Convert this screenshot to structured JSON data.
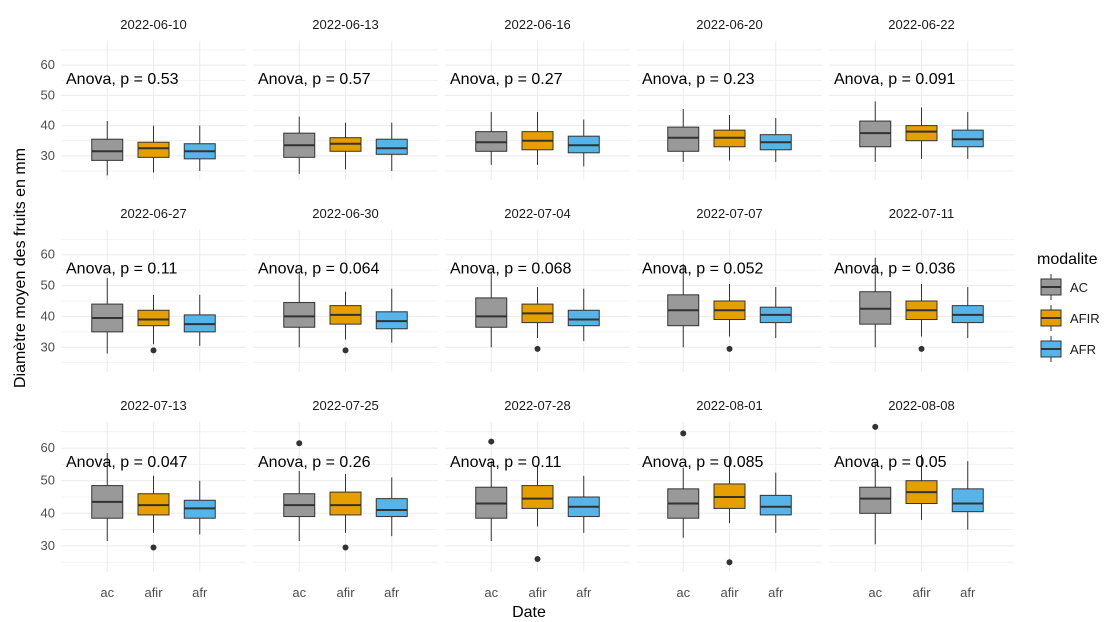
{
  "colors": {
    "ac": "#999999",
    "afir": "#E69F00",
    "afr": "#56B4E9",
    "grid": "#ebebeb",
    "box_line": "#333333"
  },
  "chart_data": {
    "type": "boxplot",
    "xlabel": "Date",
    "ylabel": "Diamètre moyen des fruits en mm",
    "categories": [
      "ac",
      "afir",
      "afr"
    ],
    "y_ticks": [
      30,
      40,
      50,
      60
    ],
    "ylim": [
      22,
      68
    ],
    "grid": true,
    "legend": {
      "title": "modalite",
      "position": "right",
      "entries": [
        "AC",
        "AFIR",
        "AFR"
      ]
    },
    "facets": [
      {
        "title": "2022-06-10",
        "anova": "Anova, p = 0.53",
        "boxes": [
          {
            "min": 23.5,
            "q1": 28.5,
            "median": 31.5,
            "q3": 35.5,
            "max": 41.5,
            "outliers": []
          },
          {
            "min": 24.5,
            "q1": 29.5,
            "median": 32.5,
            "q3": 34.5,
            "max": 40.0,
            "outliers": []
          },
          {
            "min": 25.0,
            "q1": 29.0,
            "median": 31.5,
            "q3": 34.0,
            "max": 40.0,
            "outliers": []
          }
        ]
      },
      {
        "title": "2022-06-13",
        "anova": "Anova, p = 0.57",
        "boxes": [
          {
            "min": 24.0,
            "q1": 29.5,
            "median": 33.5,
            "q3": 37.5,
            "max": 43.0,
            "outliers": []
          },
          {
            "min": 25.5,
            "q1": 31.5,
            "median": 34.0,
            "q3": 36.0,
            "max": 41.0,
            "outliers": []
          },
          {
            "min": 25.0,
            "q1": 30.5,
            "median": 32.5,
            "q3": 35.5,
            "max": 41.0,
            "outliers": []
          }
        ]
      },
      {
        "title": "2022-06-16",
        "anova": "Anova, p = 0.27",
        "boxes": [
          {
            "min": 27.0,
            "q1": 31.5,
            "median": 34.5,
            "q3": 38.0,
            "max": 44.5,
            "outliers": []
          },
          {
            "min": 27.0,
            "q1": 32.0,
            "median": 35.0,
            "q3": 38.0,
            "max": 44.5,
            "outliers": []
          },
          {
            "min": 26.5,
            "q1": 31.0,
            "median": 33.5,
            "q3": 36.5,
            "max": 42.0,
            "outliers": []
          }
        ]
      },
      {
        "title": "2022-06-20",
        "anova": "Anova, p = 0.23",
        "boxes": [
          {
            "min": 28.0,
            "q1": 31.5,
            "median": 36.0,
            "q3": 39.5,
            "max": 45.5,
            "outliers": []
          },
          {
            "min": 28.5,
            "q1": 33.0,
            "median": 36.0,
            "q3": 38.5,
            "max": 43.5,
            "outliers": []
          },
          {
            "min": 28.0,
            "q1": 32.0,
            "median": 34.5,
            "q3": 37.0,
            "max": 42.5,
            "outliers": []
          }
        ]
      },
      {
        "title": "2022-06-22",
        "anova": "Anova, p = 0.091",
        "boxes": [
          {
            "min": 28.0,
            "q1": 33.0,
            "median": 37.5,
            "q3": 41.5,
            "max": 48.0,
            "outliers": []
          },
          {
            "min": 29.0,
            "q1": 35.0,
            "median": 38.0,
            "q3": 40.0,
            "max": 46.0,
            "outliers": []
          },
          {
            "min": 29.0,
            "q1": 33.0,
            "median": 35.5,
            "q3": 38.5,
            "max": 44.5,
            "outliers": []
          }
        ]
      },
      {
        "title": "2022-06-27",
        "anova": "Anova, p = 0.11",
        "boxes": [
          {
            "min": 28.0,
            "q1": 35.0,
            "median": 39.5,
            "q3": 44.0,
            "max": 52.5,
            "outliers": []
          },
          {
            "min": 31.0,
            "q1": 37.0,
            "median": 39.0,
            "q3": 42.0,
            "max": 47.0,
            "outliers": [
              29.0
            ]
          },
          {
            "min": 30.5,
            "q1": 35.0,
            "median": 37.5,
            "q3": 40.5,
            "max": 47.0,
            "outliers": []
          }
        ]
      },
      {
        "title": "2022-06-30",
        "anova": "Anova, p = 0.064",
        "boxes": [
          {
            "min": 30.0,
            "q1": 36.5,
            "median": 40.0,
            "q3": 44.5,
            "max": 54.5,
            "outliers": []
          },
          {
            "min": 32.5,
            "q1": 37.5,
            "median": 40.5,
            "q3": 43.5,
            "max": 48.0,
            "outliers": [
              29.0
            ]
          },
          {
            "min": 31.5,
            "q1": 36.0,
            "median": 38.5,
            "q3": 41.5,
            "max": 49.0,
            "outliers": []
          }
        ]
      },
      {
        "title": "2022-07-04",
        "anova": "Anova, p = 0.068",
        "boxes": [
          {
            "min": 30.0,
            "q1": 36.5,
            "median": 40.0,
            "q3": 46.0,
            "max": 54.5,
            "outliers": []
          },
          {
            "min": 33.0,
            "q1": 38.0,
            "median": 41.0,
            "q3": 44.0,
            "max": 49.5,
            "outliers": [
              29.5
            ]
          },
          {
            "min": 32.0,
            "q1": 37.0,
            "median": 39.0,
            "q3": 42.0,
            "max": 49.0,
            "outliers": []
          }
        ]
      },
      {
        "title": "2022-07-07",
        "anova": "Anova, p = 0.052",
        "boxes": [
          {
            "min": 30.0,
            "q1": 37.0,
            "median": 42.0,
            "q3": 47.0,
            "max": 57.0,
            "outliers": []
          },
          {
            "min": 33.5,
            "q1": 39.0,
            "median": 42.0,
            "q3": 45.0,
            "max": 50.5,
            "outliers": [
              29.5
            ]
          },
          {
            "min": 33.0,
            "q1": 38.0,
            "median": 40.5,
            "q3": 43.0,
            "max": 49.5,
            "outliers": []
          }
        ]
      },
      {
        "title": "2022-07-11",
        "anova": "Anova, p = 0.036",
        "boxes": [
          {
            "min": 30.0,
            "q1": 37.5,
            "median": 42.5,
            "q3": 48.0,
            "max": 59.0,
            "outliers": []
          },
          {
            "min": 33.5,
            "q1": 39.0,
            "median": 42.0,
            "q3": 45.0,
            "max": 50.5,
            "outliers": [
              29.5
            ]
          },
          {
            "min": 33.0,
            "q1": 38.0,
            "median": 40.5,
            "q3": 43.5,
            "max": 49.5,
            "outliers": []
          }
        ]
      },
      {
        "title": "2022-07-13",
        "anova": "Anova, p = 0.047",
        "boxes": [
          {
            "min": 31.5,
            "q1": 38.5,
            "median": 43.5,
            "q3": 48.5,
            "max": 58.5,
            "outliers": []
          },
          {
            "min": 34.0,
            "q1": 39.5,
            "median": 42.5,
            "q3": 46.0,
            "max": 51.5,
            "outliers": [
              29.5
            ]
          },
          {
            "min": 33.5,
            "q1": 38.5,
            "median": 41.5,
            "q3": 44.0,
            "max": 50.0,
            "outliers": []
          }
        ]
      },
      {
        "title": "2022-07-25",
        "anova": "Anova, p = 0.26",
        "boxes": [
          {
            "min": 31.5,
            "q1": 39.0,
            "median": 42.5,
            "q3": 46.0,
            "max": 53.0,
            "outliers": [
              61.5
            ]
          },
          {
            "min": 34.0,
            "q1": 39.5,
            "median": 42.5,
            "q3": 46.5,
            "max": 52.0,
            "outliers": [
              29.5
            ]
          },
          {
            "min": 33.0,
            "q1": 39.0,
            "median": 41.0,
            "q3": 44.5,
            "max": 51.0,
            "outliers": []
          }
        ]
      },
      {
        "title": "2022-07-28",
        "anova": "Anova, p = 0.11",
        "boxes": [
          {
            "min": 31.5,
            "q1": 38.5,
            "median": 43.0,
            "q3": 48.0,
            "max": 56.0,
            "outliers": [
              62.0
            ]
          },
          {
            "min": 36.0,
            "q1": 41.5,
            "median": 44.5,
            "q3": 48.5,
            "max": 54.5,
            "outliers": [
              26.0
            ]
          },
          {
            "min": 34.0,
            "q1": 39.0,
            "median": 42.0,
            "q3": 45.0,
            "max": 51.5,
            "outliers": []
          }
        ]
      },
      {
        "title": "2022-08-01",
        "anova": "Anova, p = 0.085",
        "boxes": [
          {
            "min": 32.5,
            "q1": 38.5,
            "median": 43.0,
            "q3": 47.5,
            "max": 54.0,
            "outliers": [
              64.5
            ]
          },
          {
            "min": 37.0,
            "q1": 41.5,
            "median": 45.0,
            "q3": 49.0,
            "max": 57.0,
            "outliers": [
              25.0
            ]
          },
          {
            "min": 34.0,
            "q1": 39.5,
            "median": 42.0,
            "q3": 45.5,
            "max": 52.5,
            "outliers": []
          }
        ]
      },
      {
        "title": "2022-08-08",
        "anova": "Anova, p = 0.05",
        "boxes": [
          {
            "min": 30.5,
            "q1": 40.0,
            "median": 44.5,
            "q3": 48.0,
            "max": 55.5,
            "outliers": [
              66.5
            ]
          },
          {
            "min": 38.0,
            "q1": 43.0,
            "median": 46.5,
            "q3": 50.0,
            "max": 58.0,
            "outliers": []
          },
          {
            "min": 35.0,
            "q1": 40.5,
            "median": 43.0,
            "q3": 47.5,
            "max": 56.0,
            "outliers": []
          }
        ]
      }
    ]
  }
}
